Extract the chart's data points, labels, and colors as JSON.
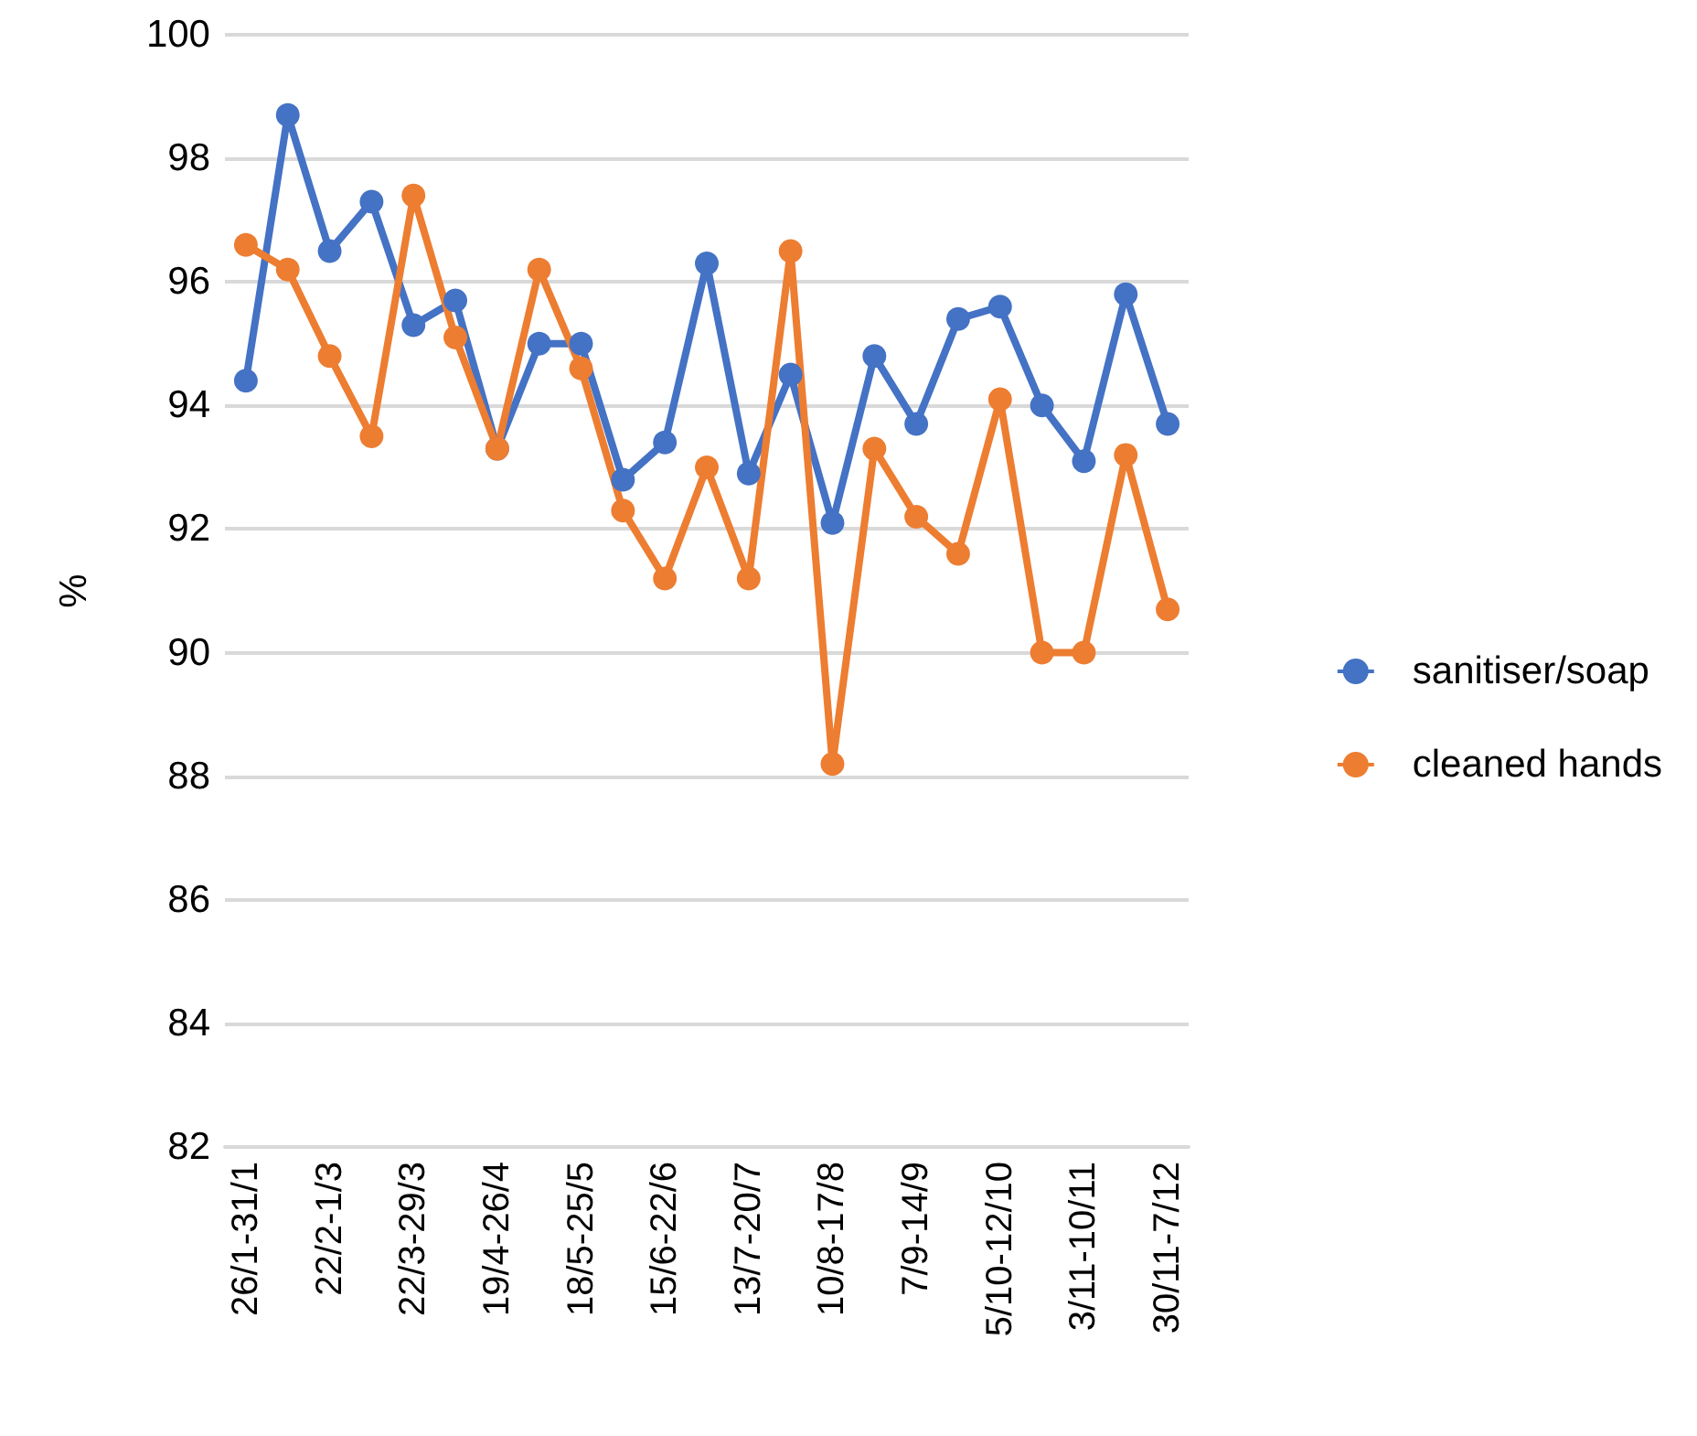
{
  "chart_data": {
    "type": "line",
    "ylabel": "%",
    "categories": [
      "26/1-31/1",
      null,
      "22/2-1/3",
      null,
      "22/3-29/3",
      null,
      "19/4-26/4",
      null,
      "18/5-25/5",
      null,
      "15/6-22/6",
      null,
      "13/7-20/7",
      null,
      "10/8-17/8",
      null,
      "7/9-14/9",
      null,
      "5/10-12/10",
      null,
      "3/11-10/11",
      null,
      "30/11-7/12"
    ],
    "series": [
      {
        "name": "sanitiser/soap",
        "color": "#4472c4",
        "values": [
          94.4,
          98.7,
          96.5,
          97.3,
          95.3,
          95.7,
          93.3,
          95.0,
          95.0,
          92.8,
          93.4,
          96.3,
          92.9,
          94.5,
          92.1,
          94.8,
          93.7,
          95.4,
          95.6,
          94.0,
          93.1,
          95.8,
          93.7
        ]
      },
      {
        "name": "cleaned hands",
        "color": "#ed7d31",
        "values": [
          96.6,
          96.2,
          94.8,
          93.5,
          97.4,
          95.1,
          93.3,
          96.2,
          94.6,
          92.3,
          91.2,
          93.0,
          91.2,
          96.5,
          88.2,
          93.3,
          92.2,
          91.6,
          94.1,
          90.0,
          90.0,
          93.2,
          90.7
        ]
      }
    ],
    "ylim": [
      82,
      100
    ],
    "yticks": [
      82,
      84,
      86,
      88,
      90,
      92,
      94,
      96,
      98,
      100
    ],
    "grid": "y",
    "legend": "right",
    "marker": "circle",
    "line_style": "solid"
  }
}
